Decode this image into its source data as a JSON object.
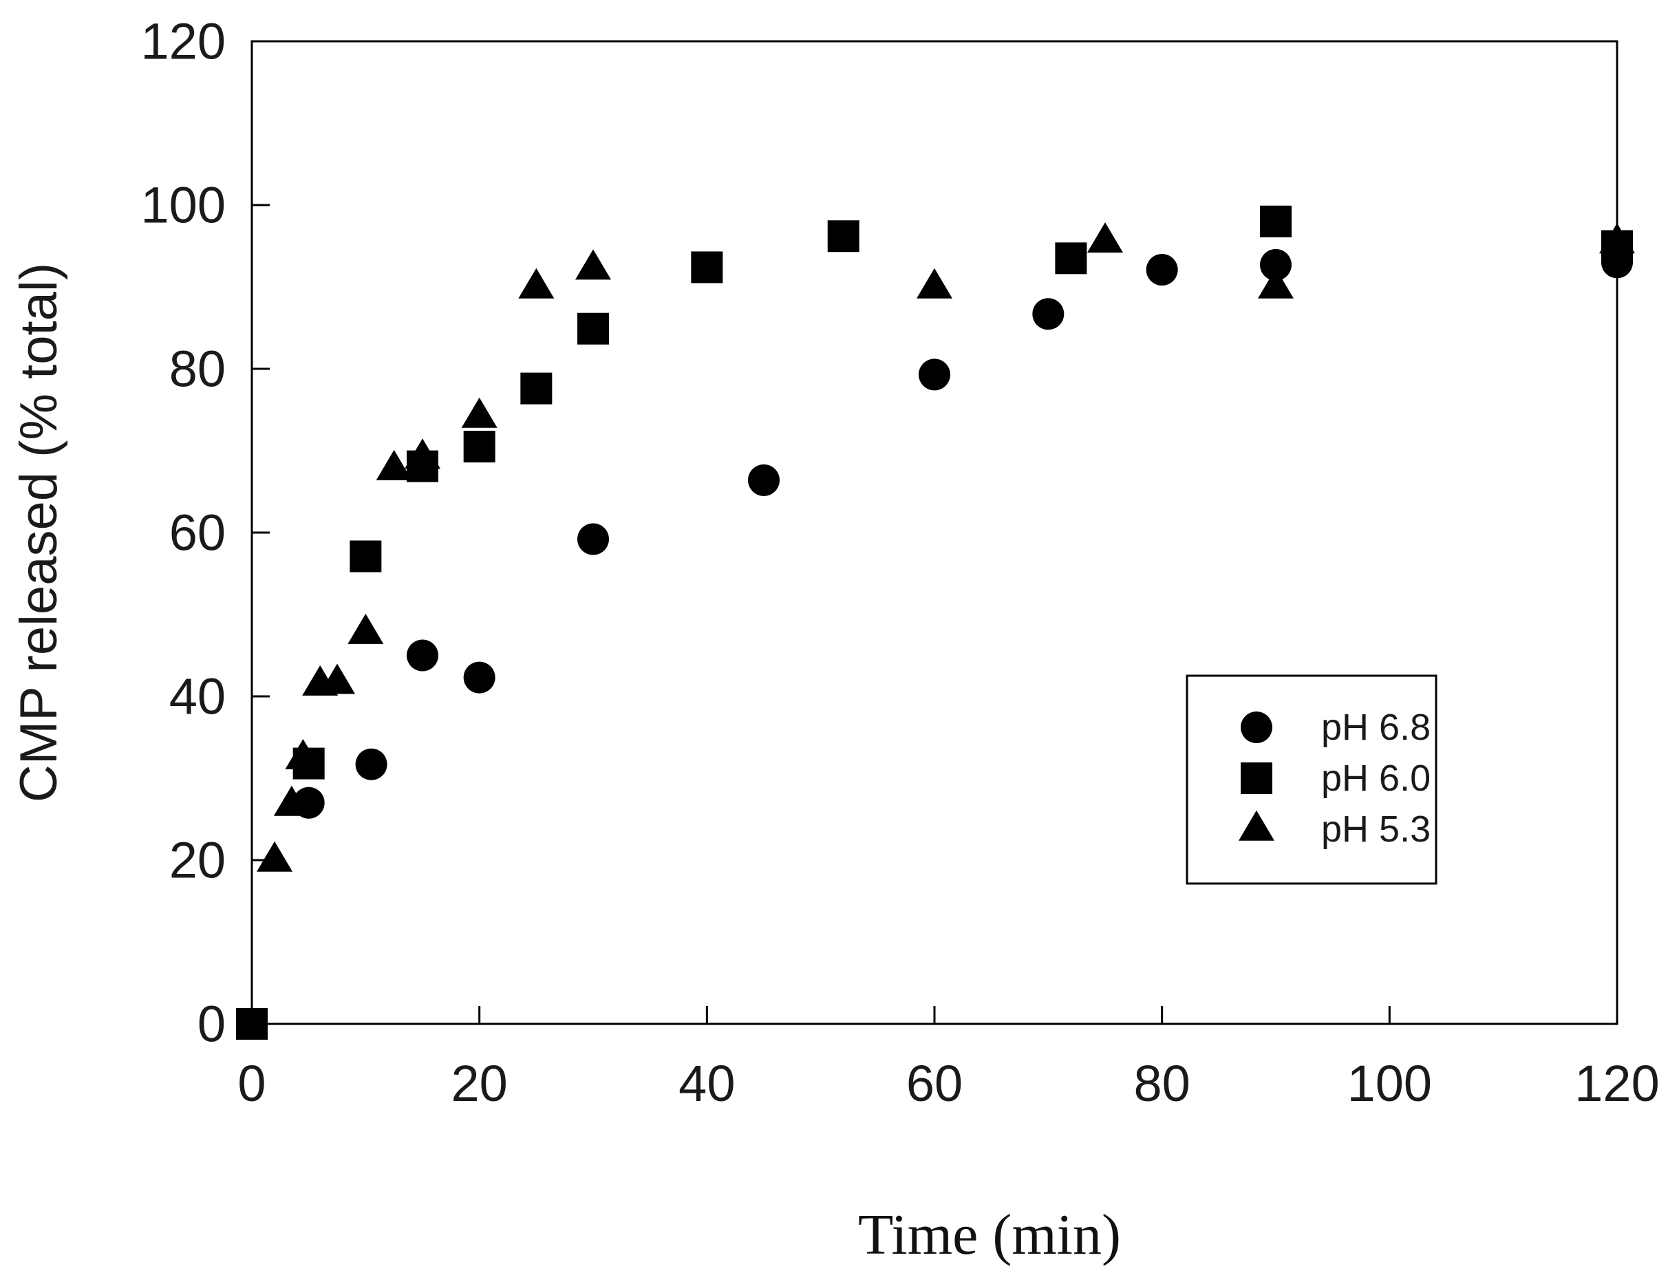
{
  "chart_data": {
    "type": "scatter",
    "title": "",
    "xlabel": "Time (min)",
    "ylabel": "CMP released (% total)",
    "xlim": [
      0,
      120
    ],
    "ylim": [
      0,
      120
    ],
    "xticks": [
      0,
      20,
      40,
      60,
      80,
      100,
      120
    ],
    "yticks": [
      0,
      20,
      40,
      60,
      80,
      100,
      120
    ],
    "grid": false,
    "legend_position": "right-center",
    "series": [
      {
        "name": "pH 6.8",
        "marker": "circle",
        "color": "#000000",
        "points": [
          [
            0,
            0
          ],
          [
            5,
            27
          ],
          [
            10.5,
            31.7
          ],
          [
            15,
            45
          ],
          [
            20,
            42.3
          ],
          [
            30,
            59.2
          ],
          [
            45,
            66.4
          ],
          [
            60,
            79.3
          ],
          [
            70,
            86.7
          ],
          [
            80,
            92.1
          ],
          [
            90,
            92.7
          ],
          [
            120,
            93
          ]
        ]
      },
      {
        "name": "pH 6.0",
        "marker": "square",
        "color": "#000000",
        "points": [
          [
            0,
            0
          ],
          [
            5,
            31.8
          ],
          [
            10,
            57.1
          ],
          [
            15,
            68.1
          ],
          [
            20,
            70.5
          ],
          [
            25,
            77.6
          ],
          [
            30,
            84.9
          ],
          [
            40,
            92.4
          ],
          [
            52,
            96.2
          ],
          [
            72,
            93.5
          ],
          [
            90,
            98
          ],
          [
            120,
            95
          ]
        ]
      },
      {
        "name": "pH 5.3",
        "marker": "triangle",
        "color": "#000000",
        "points": [
          [
            2,
            20
          ],
          [
            3.5,
            26.8
          ],
          [
            4.5,
            32.5
          ],
          [
            6,
            41.5
          ],
          [
            7.5,
            41.7
          ],
          [
            10,
            47.8
          ],
          [
            12.5,
            67.8
          ],
          [
            15,
            69.2
          ],
          [
            20,
            74.2
          ],
          [
            25,
            90
          ],
          [
            30,
            92.3
          ],
          [
            60,
            90
          ],
          [
            75,
            95.6
          ],
          [
            90,
            90
          ],
          [
            120,
            95.5
          ]
        ]
      }
    ]
  }
}
